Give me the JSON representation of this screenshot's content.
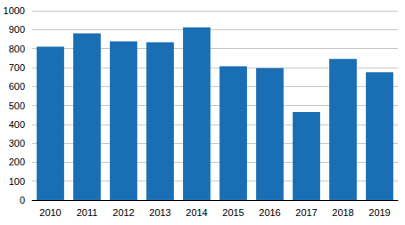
{
  "chart_data": {
    "type": "bar",
    "categories": [
      "2010",
      "2011",
      "2012",
      "2013",
      "2014",
      "2015",
      "2016",
      "2017",
      "2018",
      "2019"
    ],
    "values": [
      810,
      880,
      838,
      833,
      912,
      707,
      697,
      465,
      745,
      675
    ],
    "color": "#1a6eb4",
    "ylim": [
      0,
      1000
    ],
    "yticks": [
      0,
      100,
      200,
      300,
      400,
      500,
      600,
      700,
      800,
      900,
      1000
    ],
    "grid": true
  }
}
